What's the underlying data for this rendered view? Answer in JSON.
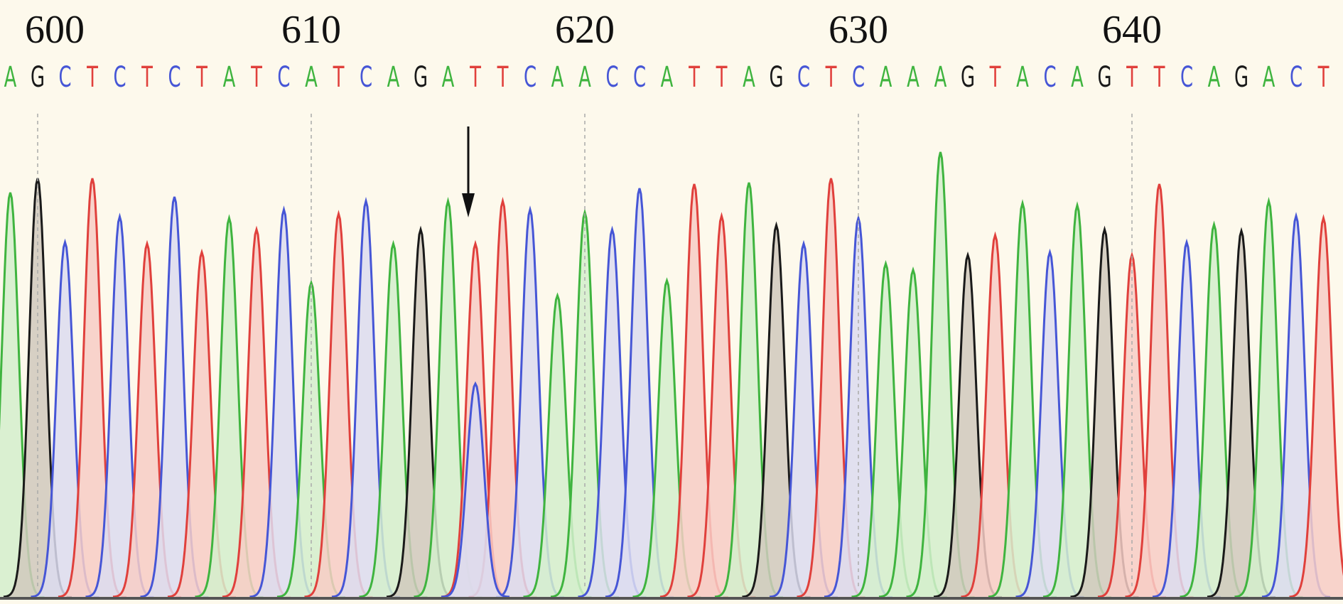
{
  "sequence": {
    "positions": [
      600,
      610,
      620,
      630,
      640
    ],
    "bases": [
      "A",
      "G",
      "C",
      "T",
      "C",
      "T",
      "C",
      "T",
      "A",
      "T",
      "C",
      "A",
      "T",
      "C",
      "A",
      "G",
      "A",
      "T",
      "T",
      "C",
      "A",
      "A",
      "C",
      "C",
      "A",
      "T",
      "T",
      "A",
      "G",
      "C",
      "T",
      "C",
      "A",
      "A",
      "A",
      "G",
      "T",
      "A",
      "C",
      "A",
      "G",
      "T",
      "T",
      "C",
      "A",
      "G",
      "A",
      "C",
      "T"
    ]
  }
}
